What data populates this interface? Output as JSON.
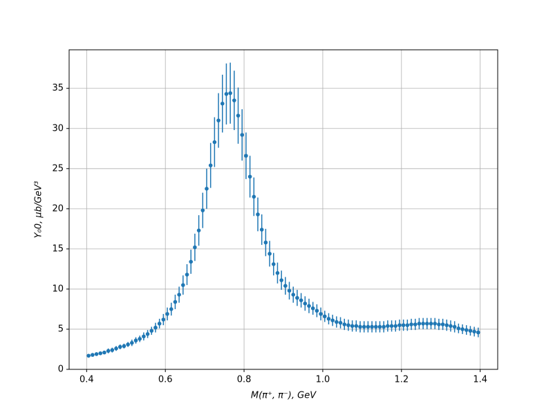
{
  "chart_data": {
    "type": "errorbar",
    "xlabel": "M(π⁺, π⁻), GeV",
    "ylabel": "Y₀0, μb/GeV³",
    "x": [
      0.405,
      0.415,
      0.425,
      0.435,
      0.445,
      0.455,
      0.465,
      0.475,
      0.485,
      0.495,
      0.505,
      0.515,
      0.525,
      0.535,
      0.545,
      0.555,
      0.565,
      0.575,
      0.585,
      0.595,
      0.605,
      0.615,
      0.625,
      0.635,
      0.645,
      0.655,
      0.665,
      0.675,
      0.685,
      0.695,
      0.705,
      0.715,
      0.725,
      0.735,
      0.745,
      0.755,
      0.765,
      0.775,
      0.785,
      0.795,
      0.805,
      0.815,
      0.825,
      0.835,
      0.845,
      0.855,
      0.865,
      0.875,
      0.885,
      0.895,
      0.905,
      0.915,
      0.925,
      0.935,
      0.945,
      0.955,
      0.965,
      0.975,
      0.985,
      0.995,
      1.005,
      1.015,
      1.025,
      1.035,
      1.045,
      1.055,
      1.065,
      1.075,
      1.085,
      1.095,
      1.105,
      1.115,
      1.125,
      1.135,
      1.145,
      1.155,
      1.165,
      1.175,
      1.185,
      1.195,
      1.205,
      1.215,
      1.225,
      1.235,
      1.245,
      1.255,
      1.265,
      1.275,
      1.285,
      1.295,
      1.305,
      1.315,
      1.325,
      1.335,
      1.345,
      1.355,
      1.365,
      1.375,
      1.385,
      1.395
    ],
    "series": [
      {
        "color": "#1f77b4",
        "values": [
          1.7,
          1.8,
          1.9,
          2.0,
          2.1,
          2.3,
          2.4,
          2.6,
          2.8,
          2.9,
          3.1,
          3.3,
          3.6,
          3.8,
          4.1,
          4.4,
          4.8,
          5.2,
          5.7,
          6.2,
          6.9,
          7.5,
          8.4,
          9.3,
          10.5,
          11.8,
          13.4,
          15.2,
          17.3,
          19.8,
          22.5,
          25.4,
          28.3,
          31.0,
          33.1,
          34.3,
          34.4,
          33.5,
          31.6,
          29.2,
          26.6,
          24.0,
          21.5,
          19.3,
          17.4,
          15.8,
          14.4,
          13.1,
          12.0,
          11.1,
          10.4,
          9.8,
          9.3,
          8.9,
          8.6,
          8.2,
          7.9,
          7.6,
          7.3,
          6.9,
          6.6,
          6.3,
          6.1,
          5.9,
          5.8,
          5.6,
          5.5,
          5.4,
          5.4,
          5.3,
          5.3,
          5.3,
          5.3,
          5.3,
          5.3,
          5.3,
          5.4,
          5.4,
          5.4,
          5.5,
          5.5,
          5.5,
          5.6,
          5.6,
          5.7,
          5.7,
          5.7,
          5.7,
          5.7,
          5.6,
          5.6,
          5.5,
          5.4,
          5.3,
          5.1,
          5.0,
          4.9,
          4.8,
          4.7,
          4.6
        ],
        "errors": [
          0.2,
          0.2,
          0.2,
          0.2,
          0.2,
          0.3,
          0.3,
          0.3,
          0.3,
          0.3,
          0.3,
          0.4,
          0.4,
          0.4,
          0.5,
          0.5,
          0.5,
          0.6,
          0.6,
          0.7,
          0.8,
          0.8,
          0.9,
          1.0,
          1.2,
          1.3,
          1.5,
          1.7,
          1.9,
          2.2,
          2.5,
          2.8,
          3.1,
          3.4,
          3.6,
          3.8,
          3.8,
          3.7,
          3.5,
          3.2,
          2.9,
          2.6,
          2.4,
          2.1,
          1.9,
          1.7,
          1.6,
          1.4,
          1.3,
          1.2,
          1.1,
          1.1,
          1.0,
          1.0,
          0.9,
          0.9,
          0.9,
          0.8,
          0.8,
          0.8,
          0.7,
          0.7,
          0.7,
          0.7,
          0.7,
          0.7,
          0.7,
          0.7,
          0.7,
          0.7,
          0.7,
          0.7,
          0.7,
          0.7,
          0.7,
          0.7,
          0.7,
          0.7,
          0.7,
          0.7,
          0.7,
          0.7,
          0.7,
          0.7,
          0.7,
          0.7,
          0.7,
          0.7,
          0.7,
          0.7,
          0.7,
          0.7,
          0.7,
          0.7,
          0.6,
          0.6,
          0.6,
          0.6,
          0.6,
          0.6
        ]
      }
    ],
    "xlim": [
      0.3555,
      1.4445
    ],
    "ylim": [
      0,
      39.8
    ],
    "xticks": [
      0.4,
      0.6,
      0.8,
      {
        "value": 1,
        "label": "1.0"
      },
      1.2,
      1.4
    ],
    "yticks": [
      0,
      5,
      10,
      15,
      20,
      25,
      30,
      35
    ],
    "grid": true
  }
}
